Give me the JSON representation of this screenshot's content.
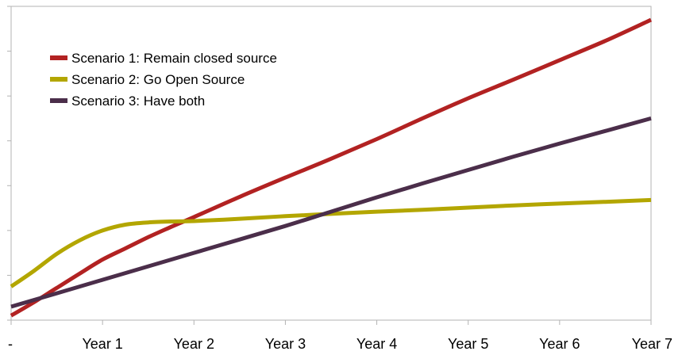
{
  "chart_data": {
    "type": "line",
    "title": "",
    "xlabel": "",
    "ylabel": "",
    "x": [
      "-",
      "Year 1",
      "Year 2",
      "Year 3",
      "Year 4",
      "Year 5",
      "Year 6",
      "Year 7"
    ],
    "y_tick_labels_shown": false,
    "y_gridlines": 7,
    "grid": false,
    "legend_position": "top-left",
    "series": [
      {
        "name": "Scenario 1: Remain closed source",
        "color": "#b22222",
        "values": [
          [
            0.0,
            0.1
          ],
          [
            0.25,
            0.4
          ],
          [
            0.5,
            0.72
          ],
          [
            0.75,
            1.04
          ],
          [
            1.0,
            1.35
          ],
          [
            1.25,
            1.6
          ],
          [
            1.5,
            1.85
          ],
          [
            1.75,
            2.08
          ],
          [
            2.0,
            2.3
          ],
          [
            2.5,
            2.75
          ],
          [
            3.0,
            3.18
          ],
          [
            3.5,
            3.6
          ],
          [
            4.0,
            4.04
          ],
          [
            4.5,
            4.5
          ],
          [
            5.0,
            4.95
          ],
          [
            5.5,
            5.37
          ],
          [
            6.0,
            5.8
          ],
          [
            6.5,
            6.23
          ],
          [
            7.0,
            6.7
          ]
        ]
      },
      {
        "name": "Scenario 2: Go Open Source",
        "color": "#b3a600",
        "values": [
          [
            0.0,
            0.75
          ],
          [
            0.25,
            1.1
          ],
          [
            0.5,
            1.48
          ],
          [
            0.75,
            1.78
          ],
          [
            1.0,
            2.0
          ],
          [
            1.25,
            2.13
          ],
          [
            1.5,
            2.18
          ],
          [
            1.75,
            2.2
          ],
          [
            2.0,
            2.21
          ],
          [
            2.5,
            2.26
          ],
          [
            3.0,
            2.32
          ],
          [
            3.5,
            2.37
          ],
          [
            4.0,
            2.42
          ],
          [
            4.5,
            2.46
          ],
          [
            5.0,
            2.51
          ],
          [
            5.5,
            2.56
          ],
          [
            6.0,
            2.6
          ],
          [
            6.5,
            2.64
          ],
          [
            7.0,
            2.68
          ]
        ]
      },
      {
        "name": "Scenario 3: Have both",
        "color": "#4b2e4a",
        "values": [
          [
            0.0,
            0.3
          ],
          [
            0.5,
            0.6
          ],
          [
            1.0,
            0.9
          ],
          [
            1.5,
            1.2
          ],
          [
            2.0,
            1.5
          ],
          [
            2.5,
            1.8
          ],
          [
            3.0,
            2.1
          ],
          [
            3.5,
            2.42
          ],
          [
            4.0,
            2.74
          ],
          [
            4.5,
            3.05
          ],
          [
            5.0,
            3.35
          ],
          [
            5.5,
            3.65
          ],
          [
            6.0,
            3.94
          ],
          [
            6.5,
            4.22
          ],
          [
            7.0,
            4.5
          ]
        ]
      }
    ],
    "ylim": [
      0,
      7
    ]
  }
}
